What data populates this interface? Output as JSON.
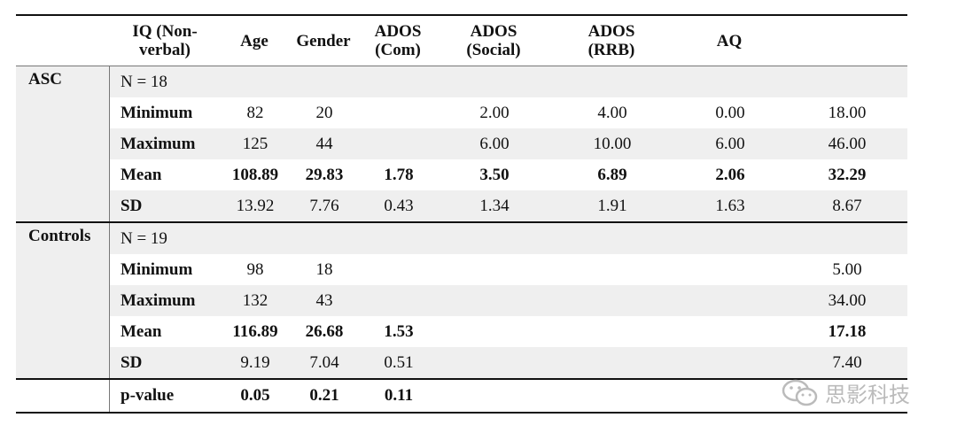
{
  "header": [
    "",
    "IQ (Non-verbal)",
    "Age",
    "Gender",
    "ADOS (Com)",
    "ADOS (Social)",
    "ADOS (RRB)",
    "AQ"
  ],
  "header_display": {
    "iq": [
      "IQ (Non-",
      "verbal)"
    ],
    "age": "Age",
    "gender": "Gender",
    "ados_com": [
      "ADOS",
      "(Com)"
    ],
    "ados_social": [
      "ADOS",
      "(Social)"
    ],
    "ados_rrb": [
      "ADOS",
      "(RRB)"
    ],
    "aq": "AQ"
  },
  "groups": [
    {
      "label": "ASC",
      "n": "N = 18",
      "rows": [
        {
          "label": "Minimum",
          "cells": [
            "82",
            "20",
            "",
            "2.00",
            "4.00",
            "0.00",
            "18.00"
          ]
        },
        {
          "label": "Maximum",
          "cells": [
            "125",
            "44",
            "",
            "6.00",
            "10.00",
            "6.00",
            "46.00"
          ]
        },
        {
          "label": "Mean",
          "cells": [
            "108.89",
            "29.83",
            "1.78",
            "3.50",
            "6.89",
            "2.06",
            "32.29"
          ]
        },
        {
          "label": "SD",
          "cells": [
            "13.92",
            "7.76",
            "0.43",
            "1.34",
            "1.91",
            "1.63",
            "8.67"
          ]
        }
      ]
    },
    {
      "label": "Controls",
      "n": "N = 19",
      "rows": [
        {
          "label": "Minimum",
          "cells": [
            "98",
            "18",
            "",
            "",
            "",
            "",
            "5.00"
          ]
        },
        {
          "label": "Maximum",
          "cells": [
            "132",
            "43",
            "",
            "",
            "",
            "",
            "34.00"
          ]
        },
        {
          "label": "Mean",
          "cells": [
            "116.89",
            "26.68",
            "1.53",
            "",
            "",
            "",
            "17.18"
          ]
        },
        {
          "label": "SD",
          "cells": [
            "9.19",
            "7.04",
            "0.51",
            "",
            "",
            "",
            "7.40"
          ]
        }
      ]
    }
  ],
  "pvalue": {
    "label": "p-value",
    "cells": [
      "0.05",
      "0.21",
      "0.11",
      "",
      "",
      "",
      ""
    ]
  },
  "watermark": {
    "text": "思影科技",
    "icon": "wechat-icon"
  }
}
